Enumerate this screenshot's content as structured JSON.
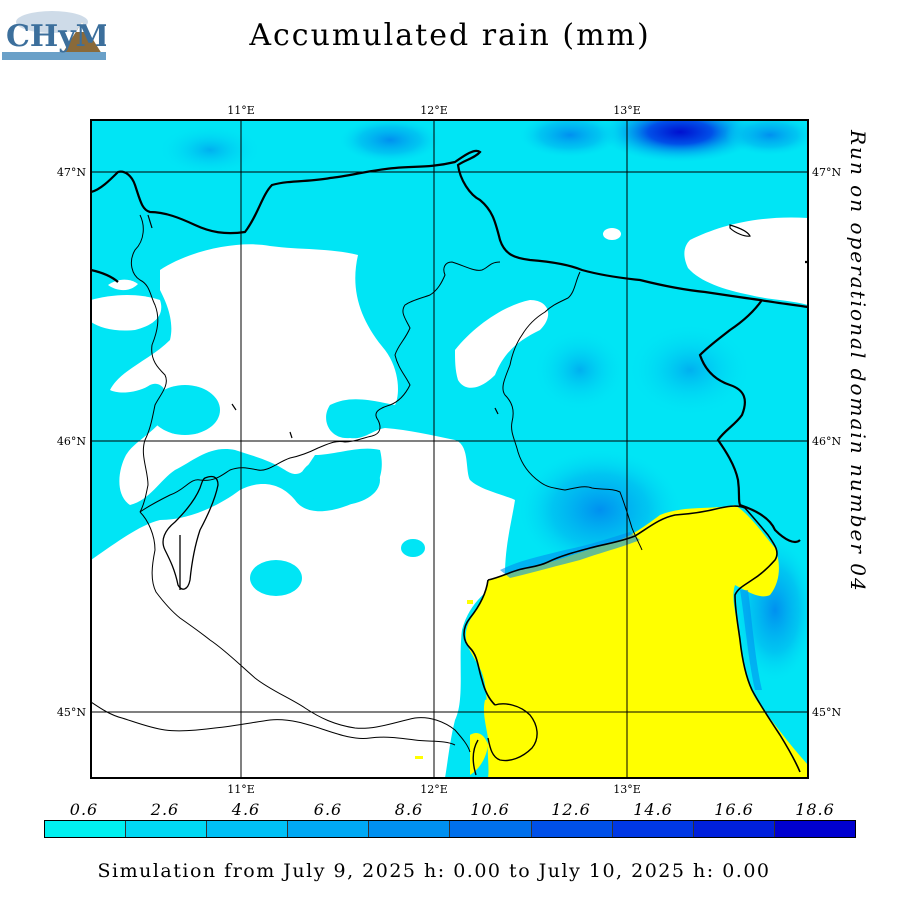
{
  "header": {
    "title": "Accumulated rain (mm)",
    "logo_text": "CHyM"
  },
  "side_label": "Run on operational domain number 04",
  "map": {
    "lon_ticks_top": [
      "11°E",
      "12°E",
      "13°E"
    ],
    "lon_ticks_bottom": [
      "11°E",
      "12°E",
      "13°E"
    ],
    "lat_ticks_left": [
      "47°N",
      "46°N",
      "45°N"
    ],
    "lat_ticks_right": [
      "47°N",
      "46°N",
      "45°N"
    ],
    "colors": {
      "sea": "#ffff00",
      "light_rain": "#00e5f5",
      "medium_rain": "#00bff0",
      "heavy_rain": "#0070e8",
      "max_rain": "#0000c8",
      "no_rain": "#ffffff",
      "border": "#000000"
    }
  },
  "legend": {
    "labels": [
      "0.6",
      "2.6",
      "4.6",
      "6.6",
      "8.6",
      "10.6",
      "12.6",
      "14.6",
      "16.6",
      "18.6"
    ],
    "colors": [
      "#00f0f0",
      "#00d8f4",
      "#00c0f6",
      "#00a8f4",
      "#0090f0",
      "#0070ec",
      "#0050e8",
      "#0038e4",
      "#0020dc",
      "#0000d0"
    ]
  },
  "footer": {
    "text": "Simulation from July 9, 2025 h: 0.00 to July 10, 2025 h: 0.00"
  }
}
